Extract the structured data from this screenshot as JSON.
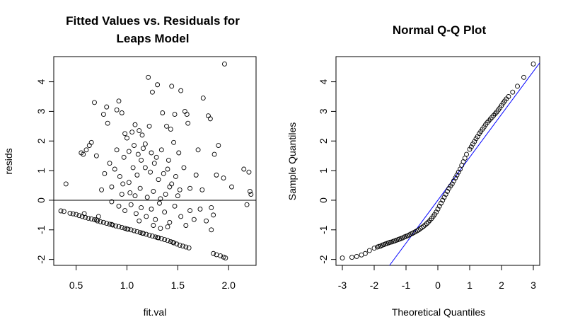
{
  "chart_data": [
    {
      "type": "scatter",
      "title_lines": [
        "Fitted Values vs. Residuals for",
        "Leaps Model"
      ],
      "xlabel": "fit.val",
      "ylabel": "resids",
      "xlim": [
        0.28,
        2.27
      ],
      "ylim": [
        -2.2,
        4.85
      ],
      "xticks": [
        0.5,
        1.0,
        1.5,
        2.0
      ],
      "xtick_labels": [
        "0.5",
        "1.0",
        "1.5",
        "2.0"
      ],
      "yticks": [
        -2,
        -1,
        0,
        1,
        2,
        3,
        4
      ],
      "ytick_labels": [
        "-2",
        "-1",
        "0",
        "1",
        "2",
        "3",
        "4"
      ],
      "hline": 0,
      "grid": false,
      "points": [
        [
          0.35,
          -0.36
        ],
        [
          0.38,
          -0.38
        ],
        [
          0.44,
          -0.44
        ],
        [
          0.47,
          -0.46
        ],
        [
          0.5,
          -0.48
        ],
        [
          0.53,
          -0.52
        ],
        [
          0.56,
          -0.55
        ],
        [
          0.59,
          -0.58
        ],
        [
          0.62,
          -0.61
        ],
        [
          0.65,
          -0.63
        ],
        [
          0.68,
          -0.66
        ],
        [
          0.71,
          -0.7
        ],
        [
          0.74,
          -0.73
        ],
        [
          0.77,
          -0.75
        ],
        [
          0.8,
          -0.78
        ],
        [
          0.83,
          -0.81
        ],
        [
          0.86,
          -0.84
        ],
        [
          0.89,
          -0.87
        ],
        [
          0.92,
          -0.89
        ],
        [
          0.95,
          -0.92
        ],
        [
          0.98,
          -0.95
        ],
        [
          1.01,
          -0.98
        ],
        [
          1.04,
          -1.0
        ],
        [
          1.07,
          -1.03
        ],
        [
          1.1,
          -1.06
        ],
        [
          1.13,
          -1.09
        ],
        [
          1.16,
          -1.12
        ],
        [
          1.19,
          -1.15
        ],
        [
          1.22,
          -1.18
        ],
        [
          1.25,
          -1.21
        ],
        [
          1.28,
          -1.24
        ],
        [
          1.31,
          -1.27
        ],
        [
          1.34,
          -1.3
        ],
        [
          1.37,
          -1.33
        ],
        [
          1.4,
          -1.36
        ],
        [
          1.43,
          -1.4
        ],
        [
          1.46,
          -1.44
        ],
        [
          1.49,
          -1.48
        ],
        [
          1.52,
          -1.52
        ],
        [
          1.55,
          -1.55
        ],
        [
          1.58,
          -1.58
        ],
        [
          1.61,
          -1.61
        ],
        [
          0.7,
          -0.66
        ],
        [
          0.85,
          -0.82
        ],
        [
          1.0,
          -0.97
        ],
        [
          1.15,
          -1.11
        ],
        [
          1.3,
          -1.26
        ],
        [
          1.45,
          -1.42
        ],
        [
          1.85,
          -1.8
        ],
        [
          1.88,
          -1.84
        ],
        [
          1.92,
          -1.88
        ],
        [
          1.95,
          -1.92
        ],
        [
          1.97,
          -1.95
        ],
        [
          0.55,
          1.6
        ],
        [
          0.57,
          1.55
        ],
        [
          0.6,
          1.7
        ],
        [
          0.63,
          1.85
        ],
        [
          0.65,
          1.95
        ],
        [
          0.7,
          1.5
        ],
        [
          0.68,
          3.3
        ],
        [
          0.8,
          3.15
        ],
        [
          0.77,
          2.9
        ],
        [
          0.81,
          2.6
        ],
        [
          0.92,
          3.35
        ],
        [
          0.9,
          3.05
        ],
        [
          0.95,
          2.95
        ],
        [
          0.98,
          2.25
        ],
        [
          1.0,
          2.1
        ],
        [
          1.05,
          2.3
        ],
        [
          1.08,
          2.55
        ],
        [
          1.12,
          2.35
        ],
        [
          1.15,
          2.2
        ],
        [
          1.18,
          1.9
        ],
        [
          1.22,
          2.5
        ],
        [
          1.25,
          3.65
        ],
        [
          1.3,
          3.9
        ],
        [
          1.35,
          2.95
        ],
        [
          1.39,
          2.5
        ],
        [
          1.43,
          2.4
        ],
        [
          1.47,
          2.9
        ],
        [
          1.53,
          3.7
        ],
        [
          1.57,
          3.0
        ],
        [
          1.6,
          2.6
        ],
        [
          1.7,
          1.7
        ],
        [
          1.75,
          3.45
        ],
        [
          1.8,
          2.85
        ],
        [
          1.96,
          4.6
        ],
        [
          1.21,
          4.15
        ],
        [
          1.44,
          3.85
        ],
        [
          1.59,
          2.9
        ],
        [
          1.82,
          2.75
        ],
        [
          1.86,
          1.55
        ],
        [
          1.9,
          1.85
        ],
        [
          0.4,
          0.55
        ],
        [
          0.78,
          0.9
        ],
        [
          0.83,
          1.25
        ],
        [
          0.88,
          1.05
        ],
        [
          0.93,
          0.8
        ],
        [
          0.96,
          0.55
        ],
        [
          1.02,
          0.6
        ],
        [
          1.06,
          1.1
        ],
        [
          1.1,
          0.85
        ],
        [
          1.14,
          1.35
        ],
        [
          1.18,
          1.1
        ],
        [
          1.23,
          0.95
        ],
        [
          1.27,
          1.25
        ],
        [
          1.31,
          0.7
        ],
        [
          1.36,
          0.9
        ],
        [
          1.4,
          1.05
        ],
        [
          1.44,
          0.55
        ],
        [
          1.48,
          0.8
        ],
        [
          1.52,
          0.35
        ],
        [
          1.56,
          1.1
        ],
        [
          1.62,
          0.4
        ],
        [
          1.68,
          0.85
        ],
        [
          1.74,
          0.35
        ],
        [
          1.88,
          0.85
        ],
        [
          1.95,
          0.75
        ],
        [
          2.03,
          0.45
        ],
        [
          2.15,
          1.05
        ],
        [
          2.2,
          0.95
        ],
        [
          2.21,
          0.3
        ],
        [
          2.22,
          0.2
        ],
        [
          0.75,
          0.35
        ],
        [
          0.85,
          0.45
        ],
        [
          0.95,
          0.2
        ],
        [
          1.03,
          0.25
        ],
        [
          1.08,
          0.15
        ],
        [
          1.13,
          0.4
        ],
        [
          1.2,
          0.1
        ],
        [
          1.26,
          0.3
        ],
        [
          1.33,
          0.05
        ],
        [
          1.38,
          0.2
        ],
        [
          1.42,
          0.45
        ],
        [
          1.5,
          0.15
        ],
        [
          0.9,
          1.7
        ],
        [
          0.97,
          1.45
        ],
        [
          1.02,
          1.65
        ],
        [
          1.07,
          1.85
        ],
        [
          1.11,
          1.55
        ],
        [
          1.16,
          1.75
        ],
        [
          1.24,
          1.6
        ],
        [
          1.29,
          1.45
        ],
        [
          1.34,
          1.7
        ],
        [
          1.41,
          1.35
        ],
        [
          1.46,
          1.95
        ],
        [
          1.51,
          1.6
        ],
        [
          0.85,
          -0.05
        ],
        [
          0.92,
          -0.2
        ],
        [
          0.98,
          -0.35
        ],
        [
          1.04,
          -0.15
        ],
        [
          1.09,
          -0.45
        ],
        [
          1.14,
          -0.25
        ],
        [
          1.19,
          -0.55
        ],
        [
          1.24,
          -0.3
        ],
        [
          1.28,
          -0.65
        ],
        [
          1.32,
          -0.1
        ],
        [
          1.37,
          -0.4
        ],
        [
          1.42,
          -0.75
        ],
        [
          1.47,
          -0.2
        ],
        [
          1.53,
          -0.55
        ],
        [
          1.58,
          -0.85
        ],
        [
          1.62,
          -0.35
        ],
        [
          1.66,
          -0.65
        ],
        [
          1.72,
          -0.3
        ],
        [
          1.78,
          -0.7
        ],
        [
          1.83,
          -0.25
        ],
        [
          1.85,
          -0.5
        ],
        [
          1.83,
          -1.0
        ],
        [
          2.18,
          -0.15
        ],
        [
          0.58,
          -0.45
        ],
        [
          0.72,
          -0.55
        ],
        [
          1.26,
          -0.85
        ],
        [
          1.33,
          -0.95
        ],
        [
          1.4,
          -0.9
        ],
        [
          1.12,
          -0.7
        ]
      ]
    },
    {
      "type": "scatter",
      "title": "Normal Q-Q Plot",
      "xlabel": "Theoretical Quantiles",
      "ylabel": "Sample Quantiles",
      "xlim": [
        -3.2,
        3.2
      ],
      "ylim": [
        -2.2,
        4.85
      ],
      "xticks": [
        -3,
        -2,
        -1,
        0,
        1,
        2,
        3
      ],
      "xtick_labels": [
        "-3",
        "-2",
        "-1",
        "0",
        "1",
        "2",
        "3"
      ],
      "yticks": [
        -2,
        -1,
        0,
        1,
        2,
        3,
        4
      ],
      "ytick_labels": [
        "-2",
        "-1",
        "0",
        "1",
        "2",
        "3",
        "4"
      ],
      "qq_line": {
        "intercept": 0.0,
        "slope": 1.45,
        "color": "#0000ff"
      },
      "grid": false,
      "points": [
        [
          -3.0,
          -1.95
        ],
        [
          -2.7,
          -1.93
        ],
        [
          -2.55,
          -1.9
        ],
        [
          -2.4,
          -1.85
        ],
        [
          -2.28,
          -1.8
        ],
        [
          -2.15,
          -1.7
        ],
        [
          -2.0,
          -1.62
        ],
        [
          -1.9,
          -1.58
        ],
        [
          -1.8,
          -1.55
        ],
        [
          -1.7,
          -1.5
        ],
        [
          -1.6,
          -1.46
        ],
        [
          -1.5,
          -1.42
        ],
        [
          -1.4,
          -1.39
        ],
        [
          -1.3,
          -1.35
        ],
        [
          -1.2,
          -1.31
        ],
        [
          -1.1,
          -1.27
        ],
        [
          -1.0,
          -1.22
        ],
        [
          -0.9,
          -1.17
        ],
        [
          -0.8,
          -1.12
        ],
        [
          -0.7,
          -1.06
        ],
        [
          -0.6,
          -1.0
        ],
        [
          -0.5,
          -0.92
        ],
        [
          -0.4,
          -0.84
        ],
        [
          -0.3,
          -0.74
        ],
        [
          -0.2,
          -0.62
        ],
        [
          -0.1,
          -0.48
        ],
        [
          0.0,
          -0.3
        ],
        [
          0.1,
          -0.1
        ],
        [
          0.2,
          0.1
        ],
        [
          0.3,
          0.3
        ],
        [
          0.4,
          0.48
        ],
        [
          0.5,
          0.65
        ],
        [
          0.6,
          0.85
        ],
        [
          0.7,
          1.05
        ],
        [
          0.8,
          1.3
        ],
        [
          0.9,
          1.55
        ],
        [
          1.0,
          1.72
        ],
        [
          1.1,
          1.9
        ],
        [
          1.2,
          2.08
        ],
        [
          1.3,
          2.25
        ],
        [
          1.4,
          2.4
        ],
        [
          1.5,
          2.55
        ],
        [
          1.6,
          2.68
        ],
        [
          1.7,
          2.8
        ],
        [
          1.8,
          2.92
        ],
        [
          1.9,
          3.05
        ],
        [
          2.0,
          3.2
        ],
        [
          2.1,
          3.35
        ],
        [
          2.22,
          3.5
        ],
        [
          2.35,
          3.65
        ],
        [
          2.5,
          3.85
        ],
        [
          2.7,
          4.15
        ],
        [
          3.0,
          4.6
        ],
        [
          -1.75,
          -1.52
        ],
        [
          -1.35,
          -1.37
        ],
        [
          -0.95,
          -1.2
        ],
        [
          -0.55,
          -0.96
        ],
        [
          -0.15,
          -0.55
        ],
        [
          0.25,
          0.2
        ],
        [
          0.55,
          0.75
        ],
        [
          0.85,
          1.42
        ],
        [
          1.25,
          2.15
        ],
        [
          1.65,
          2.74
        ],
        [
          1.05,
          1.8
        ],
        [
          1.15,
          1.98
        ],
        [
          0.65,
          0.95
        ],
        [
          0.75,
          1.18
        ],
        [
          -0.05,
          -0.4
        ],
        [
          0.05,
          -0.2
        ],
        [
          0.15,
          0.0
        ],
        [
          0.35,
          0.4
        ],
        [
          0.45,
          0.55
        ],
        [
          -0.25,
          -0.68
        ],
        [
          -0.35,
          -0.79
        ],
        [
          -0.45,
          -0.88
        ],
        [
          -0.65,
          -1.03
        ],
        [
          -0.75,
          -1.09
        ],
        [
          -0.85,
          -1.14
        ],
        [
          -1.05,
          -1.24
        ],
        [
          -1.15,
          -1.29
        ],
        [
          -1.25,
          -1.33
        ],
        [
          -1.45,
          -1.41
        ],
        [
          -1.55,
          -1.44
        ],
        [
          -1.65,
          -1.48
        ],
        [
          -1.85,
          -1.56
        ],
        [
          1.35,
          2.32
        ],
        [
          1.45,
          2.47
        ],
        [
          1.55,
          2.62
        ],
        [
          1.75,
          2.86
        ],
        [
          1.85,
          2.98
        ],
        [
          1.95,
          3.12
        ],
        [
          2.05,
          3.28
        ],
        [
          2.15,
          3.42
        ]
      ]
    }
  ]
}
